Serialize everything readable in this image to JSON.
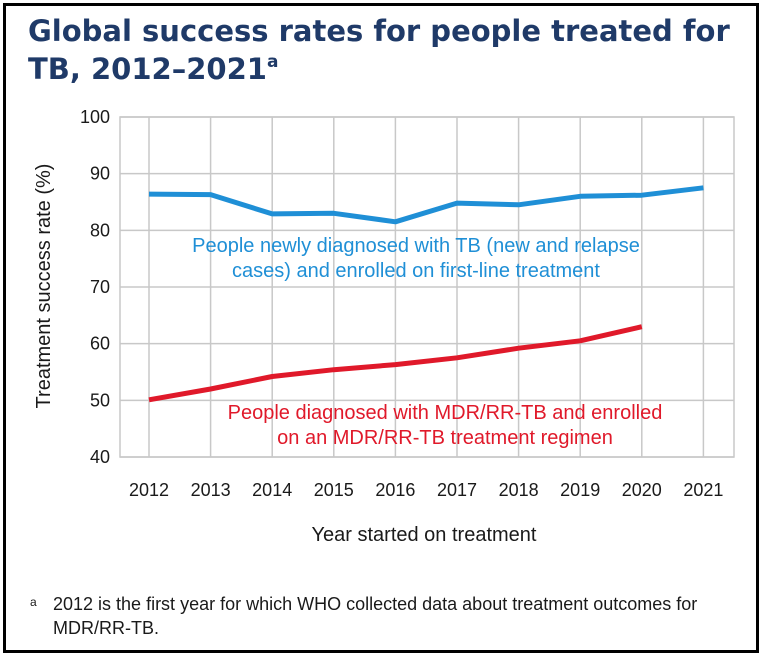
{
  "title": "Global success rates for people treated for TB, 2012–2021",
  "title_superscript": "a",
  "footnote": {
    "marker": "a",
    "text": "2012 is the first year for which WHO collected data about treatment outcomes for MDR/RR-TB."
  },
  "chart_data": {
    "type": "line",
    "title": "Global success rates for people treated for TB, 2012–2021",
    "xlabel": "Year started on treatment",
    "ylabel": "Treatment success rate (%)",
    "ylim": [
      40,
      100
    ],
    "yticks": [
      40,
      50,
      60,
      70,
      80,
      90,
      100
    ],
    "categories": [
      "2012",
      "2013",
      "2014",
      "2015",
      "2016",
      "2017",
      "2018",
      "2019",
      "2020",
      "2021"
    ],
    "grid": true,
    "series": [
      {
        "name": "People newly diagnosed with TB (new and relapse cases) and enrolled on first-line treatment",
        "label_lines": [
          "People newly diagnosed with TB (new and relapse",
          "cases) and enrolled on first-line treatment"
        ],
        "color": "#1f8fd6",
        "values": [
          86.4,
          86.3,
          82.9,
          83.0,
          81.5,
          84.8,
          84.5,
          86.0,
          86.2,
          87.5
        ]
      },
      {
        "name": "People diagnosed with MDR/RR-TB and enrolled on an MDR/RR-TB treatment regimen",
        "label_lines": [
          "People diagnosed with MDR/RR-TB and enrolled",
          "on an MDR/RR-TB treatment regimen"
        ],
        "color": "#e0192a",
        "values": [
          50.1,
          52.0,
          54.2,
          55.4,
          56.3,
          57.5,
          59.2,
          60.5,
          63.0,
          null
        ]
      }
    ]
  }
}
